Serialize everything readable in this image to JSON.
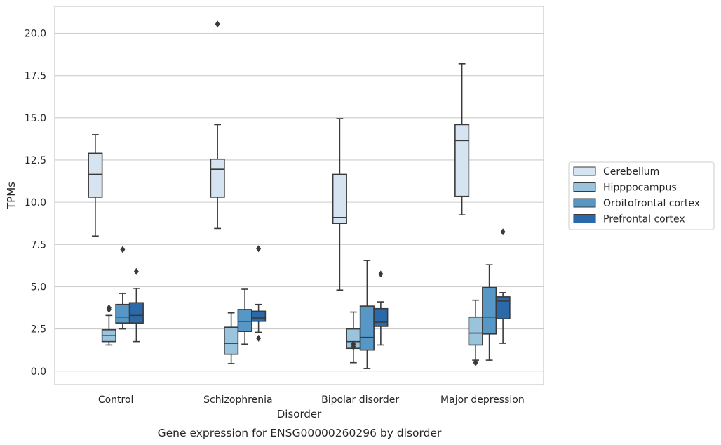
{
  "chart_data": {
    "type": "boxplot",
    "xlabel": "Disorder",
    "ylabel": "TPMs",
    "caption": "Gene expression for ENSG00000260296 by disorder",
    "ylim": [
      -0.8,
      21.6
    ],
    "yticks": [
      "0.0",
      "2.5",
      "5.0",
      "7.5",
      "10.0",
      "12.5",
      "15.0",
      "17.5",
      "20.0"
    ],
    "ytick_values": [
      0,
      2.5,
      5,
      7.5,
      10,
      12.5,
      15,
      17.5,
      20
    ],
    "grid": true,
    "legend_position": "right",
    "categories": [
      "Control",
      "Schizophrenia",
      "Bipolar disorder",
      "Major depression"
    ],
    "series": [
      {
        "name": "Cerebellum",
        "color": "#d6e4f2",
        "boxes": [
          {
            "whislo": 8.0,
            "q1": 10.3,
            "med": 11.65,
            "q3": 12.9,
            "whishi": 14.0,
            "fliers": []
          },
          {
            "whislo": 8.45,
            "q1": 10.3,
            "med": 11.95,
            "q3": 12.55,
            "whishi": 14.6,
            "fliers": [
              20.55
            ]
          },
          {
            "whislo": 4.8,
            "q1": 8.75,
            "med": 9.1,
            "q3": 11.65,
            "whishi": 14.95,
            "fliers": []
          },
          {
            "whislo": 9.25,
            "q1": 10.35,
            "med": 13.65,
            "q3": 14.6,
            "whishi": 18.2,
            "fliers": []
          }
        ]
      },
      {
        "name": "Hipppocampus",
        "color": "#9ac3de",
        "boxes": [
          {
            "whislo": 1.55,
            "q1": 1.75,
            "med": 2.1,
            "q3": 2.45,
            "whishi": 3.3,
            "fliers": [
              3.65,
              3.75
            ]
          },
          {
            "whislo": 0.45,
            "q1": 1.0,
            "med": 1.65,
            "q3": 2.6,
            "whishi": 3.45,
            "fliers": []
          },
          {
            "whislo": 0.5,
            "q1": 1.35,
            "med": 1.75,
            "q3": 2.5,
            "whishi": 3.5,
            "fliers": [
              1.45,
              1.6
            ]
          },
          {
            "whislo": 0.65,
            "q1": 1.55,
            "med": 2.25,
            "q3": 3.2,
            "whishi": 4.2,
            "fliers": [
              0.5
            ]
          }
        ]
      },
      {
        "name": "Orbitofrontal cortex",
        "color": "#5797c6",
        "boxes": [
          {
            "whislo": 2.5,
            "q1": 2.85,
            "med": 3.2,
            "q3": 3.95,
            "whishi": 4.6,
            "fliers": [
              7.2
            ]
          },
          {
            "whislo": 1.6,
            "q1": 2.35,
            "med": 2.95,
            "q3": 3.65,
            "whishi": 4.85,
            "fliers": []
          },
          {
            "whislo": 0.15,
            "q1": 1.25,
            "med": 2.0,
            "q3": 3.85,
            "whishi": 6.55,
            "fliers": []
          },
          {
            "whislo": 0.65,
            "q1": 2.2,
            "med": 3.2,
            "q3": 4.95,
            "whishi": 6.3,
            "fliers": []
          }
        ]
      },
      {
        "name": "Prefrontal cortex",
        "color": "#2a6aaa",
        "boxes": [
          {
            "whislo": 1.75,
            "q1": 2.85,
            "med": 3.3,
            "q3": 4.05,
            "whishi": 4.9,
            "fliers": [
              5.9
            ]
          },
          {
            "whislo": 2.3,
            "q1": 2.95,
            "med": 3.15,
            "q3": 3.55,
            "whishi": 3.95,
            "fliers": [
              7.25,
              1.95
            ]
          },
          {
            "whislo": 1.55,
            "q1": 2.65,
            "med": 2.9,
            "q3": 3.7,
            "whishi": 4.1,
            "fliers": [
              5.75
            ]
          },
          {
            "whislo": 1.65,
            "q1": 3.1,
            "med": 4.15,
            "q3": 4.4,
            "whishi": 4.65,
            "fliers": [
              8.25
            ]
          }
        ]
      }
    ]
  }
}
